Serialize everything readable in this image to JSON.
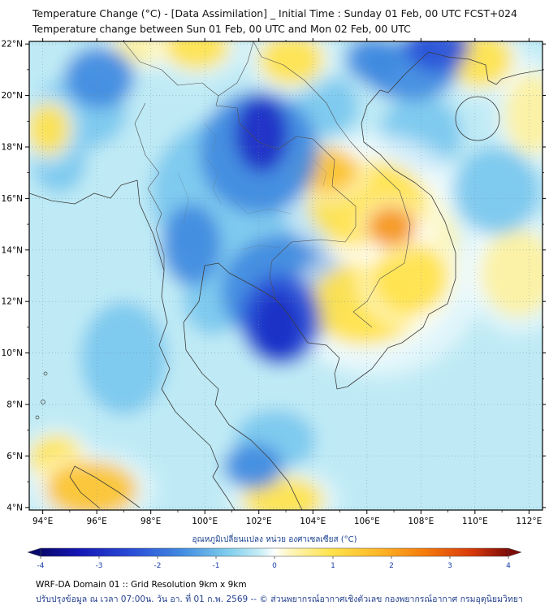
{
  "header": {
    "title_line1": "Temperature Change (°C) - [Data Assimilation] _ Initial Time : Sunday 01 Feb, 00 UTC FCST+024",
    "title_line2": "Temperature change between Sun 01 Feb, 00 UTC and Mon 02 Feb, 00 UTC"
  },
  "footer": {
    "line1": "WRF-DA Domain 01 :: Grid Resolution 9km x 9km",
    "line2": "ปรับปรุงข้อมูล ณ เวลา 07:00น. วัน อา. ที่ 01 ก.พ. 2569 -- © ส่วนพยากรณ์อากาศเชิงตัวเลข กองพยากรณ์อากาศ กรมอุตุนิยมวิทยา"
  },
  "chart_data": {
    "type": "heatmap",
    "title": "Temperature Change (°C) - [Data Assimilation] _ Initial Time : Sunday 01 Feb, 00 UTC FCST+024",
    "subtitle": "Temperature change between Sun 01 Feb, 00 UTC and Mon 02 Feb, 00 UTC",
    "units": "°C",
    "x_axis": {
      "ticks": [
        "94°E",
        "96°E",
        "98°E",
        "100°E",
        "102°E",
        "104°E",
        "106°E",
        "108°E",
        "110°E",
        "112°E"
      ],
      "tick_values": [
        94,
        96,
        98,
        100,
        102,
        104,
        106,
        108,
        110,
        112
      ],
      "range": [
        93.5,
        112.5
      ]
    },
    "y_axis": {
      "ticks": [
        "4°N",
        "6°N",
        "8°N",
        "10°N",
        "12°N",
        "14°N",
        "16°N",
        "18°N",
        "20°N",
        "22°N"
      ],
      "tick_values": [
        4,
        6,
        8,
        10,
        12,
        14,
        16,
        18,
        20,
        22
      ],
      "range": [
        3.9,
        22.1
      ]
    },
    "colorbar": {
      "label": "อุณหภูมิเปลี่ยนแปลง หน่วย องศาเซลเซียส (°C)",
      "ticks": [
        -4,
        -3,
        -2,
        -1,
        0,
        1,
        2,
        3,
        4
      ],
      "range": [
        -4,
        4
      ],
      "gradient": [
        {
          "pos": 0,
          "color": "#08086e"
        },
        {
          "pos": 0.08,
          "color": "#1515b4"
        },
        {
          "pos": 0.2,
          "color": "#2b4fd8"
        },
        {
          "pos": 0.3,
          "color": "#3f8ae0"
        },
        {
          "pos": 0.4,
          "color": "#7fcdec"
        },
        {
          "pos": 0.47,
          "color": "#c8eef6"
        },
        {
          "pos": 0.5,
          "color": "#ffffff"
        },
        {
          "pos": 0.53,
          "color": "#fdf6c0"
        },
        {
          "pos": 0.62,
          "color": "#ffe34d"
        },
        {
          "pos": 0.72,
          "color": "#fdb827"
        },
        {
          "pos": 0.82,
          "color": "#f57c0c"
        },
        {
          "pos": 0.92,
          "color": "#d93a0a"
        },
        {
          "pos": 1,
          "color": "#7e0a06"
        }
      ]
    },
    "background_color": "#bfeaf5",
    "background_value": -0.3,
    "value_colors": [
      {
        "max": -2.5,
        "color": "#1d2ec6"
      },
      {
        "max": -1.7,
        "color": "#2a52d8"
      },
      {
        "max": -1.05,
        "color": "#3f8ae0"
      },
      {
        "max": -0.6,
        "color": "#79c7ee"
      },
      {
        "max": 0,
        "color": "#b9e8f4"
      },
      {
        "max": 0.85,
        "color": "#fdf1a0"
      },
      {
        "max": 1.25,
        "color": "#ffe24a"
      },
      {
        "max": 1.8,
        "color": "#fcc22e"
      },
      {
        "max": 2.6,
        "color": "#f5941a"
      },
      {
        "max": 99,
        "color": "#d84309"
      }
    ],
    "anomaly_centers": [
      {
        "lon": 101.6,
        "lat": 16.2,
        "value": -0.9,
        "rx": 3.6,
        "ry": 3.2
      },
      {
        "lon": 102.0,
        "lat": 17.8,
        "value": -1.6,
        "rx": 2.2,
        "ry": 2.4
      },
      {
        "lon": 102.1,
        "lat": 18.5,
        "value": -2.8,
        "rx": 1.0,
        "ry": 1.5
      },
      {
        "lon": 103.0,
        "lat": 12.4,
        "value": -1.1,
        "rx": 2.4,
        "ry": 2.2
      },
      {
        "lon": 102.8,
        "lat": 11.3,
        "value": -2.0,
        "rx": 1.5,
        "ry": 1.8
      },
      {
        "lon": 102.7,
        "lat": 11.1,
        "value": -3.2,
        "rx": 0.9,
        "ry": 1.3
      },
      {
        "lon": 96.1,
        "lat": 20.7,
        "value": -1.5,
        "rx": 1.3,
        "ry": 1.2
      },
      {
        "lon": 95.3,
        "lat": 19.3,
        "value": -0.8,
        "rx": 1.8,
        "ry": 1.4
      },
      {
        "lon": 108.6,
        "lat": 21.9,
        "value": -2.2,
        "rx": 1.2,
        "ry": 1.0
      },
      {
        "lon": 107.6,
        "lat": 21.0,
        "value": -1.1,
        "rx": 1.8,
        "ry": 1.2
      },
      {
        "lon": 106.2,
        "lat": 21.4,
        "value": -1.2,
        "rx": 1.0,
        "ry": 0.9
      },
      {
        "lon": 99.5,
        "lat": 14.2,
        "value": -1.3,
        "rx": 1.1,
        "ry": 1.6
      },
      {
        "lon": 101.8,
        "lat": 5.6,
        "value": -1.5,
        "rx": 1.1,
        "ry": 0.9
      },
      {
        "lon": 102.6,
        "lat": 6.6,
        "value": -0.8,
        "rx": 1.5,
        "ry": 1.2
      },
      {
        "lon": 94.6,
        "lat": 17.5,
        "value": -0.8,
        "rx": 1.0,
        "ry": 1.3
      },
      {
        "lon": 110.8,
        "lat": 16.3,
        "value": -0.9,
        "rx": 1.6,
        "ry": 1.7
      },
      {
        "lon": 97.0,
        "lat": 9.8,
        "value": -0.6,
        "rx": 1.6,
        "ry": 2.2
      },
      {
        "lon": 104.5,
        "lat": 19.6,
        "value": -0.9,
        "rx": 1.2,
        "ry": 1.2
      },
      {
        "lon": 100.3,
        "lat": 12.0,
        "value": -0.9,
        "rx": 1.1,
        "ry": 1.3
      },
      {
        "lon": 108.0,
        "lat": 18.5,
        "value": -0.7,
        "rx": 1.5,
        "ry": 1.5
      },
      {
        "lon": 106.4,
        "lat": 13.8,
        "value": 0.7,
        "rx": 3.0,
        "ry": 3.4
      },
      {
        "lon": 106.0,
        "lat": 15.8,
        "value": 1.2,
        "rx": 2.2,
        "ry": 1.7
      },
      {
        "lon": 106.9,
        "lat": 14.9,
        "value": 2.2,
        "rx": 0.9,
        "ry": 0.8
      },
      {
        "lon": 104.5,
        "lat": 17.1,
        "value": 1.5,
        "rx": 1.2,
        "ry": 0.9
      },
      {
        "lon": 105.9,
        "lat": 11.9,
        "value": 1.2,
        "rx": 2.0,
        "ry": 1.6
      },
      {
        "lon": 107.6,
        "lat": 12.9,
        "value": 1.2,
        "rx": 1.4,
        "ry": 1.4
      },
      {
        "lon": 99.7,
        "lat": 21.9,
        "value": 1.2,
        "rx": 1.2,
        "ry": 0.9
      },
      {
        "lon": 103.2,
        "lat": 21.4,
        "value": 1.1,
        "rx": 1.2,
        "ry": 1.0
      },
      {
        "lon": 110.2,
        "lat": 21.4,
        "value": 1.0,
        "rx": 1.2,
        "ry": 1.1
      },
      {
        "lon": 95.8,
        "lat": 4.7,
        "value": 1.4,
        "rx": 1.7,
        "ry": 1.1
      },
      {
        "lon": 102.9,
        "lat": 4.3,
        "value": 1.1,
        "rx": 1.5,
        "ry": 0.9
      },
      {
        "lon": 111.6,
        "lat": 13.1,
        "value": 0.8,
        "rx": 1.4,
        "ry": 1.7
      },
      {
        "lon": 94.2,
        "lat": 18.7,
        "value": 0.9,
        "rx": 0.8,
        "ry": 1.0
      },
      {
        "lon": 112.1,
        "lat": 19.3,
        "value": 0.7,
        "rx": 1.0,
        "ry": 1.6
      },
      {
        "lon": 97.6,
        "lat": 21.9,
        "value": 0.8,
        "rx": 1.0,
        "ry": 0.7
      },
      {
        "lon": 94.5,
        "lat": 5.9,
        "value": 0.9,
        "rx": 1.0,
        "ry": 0.9
      }
    ]
  }
}
